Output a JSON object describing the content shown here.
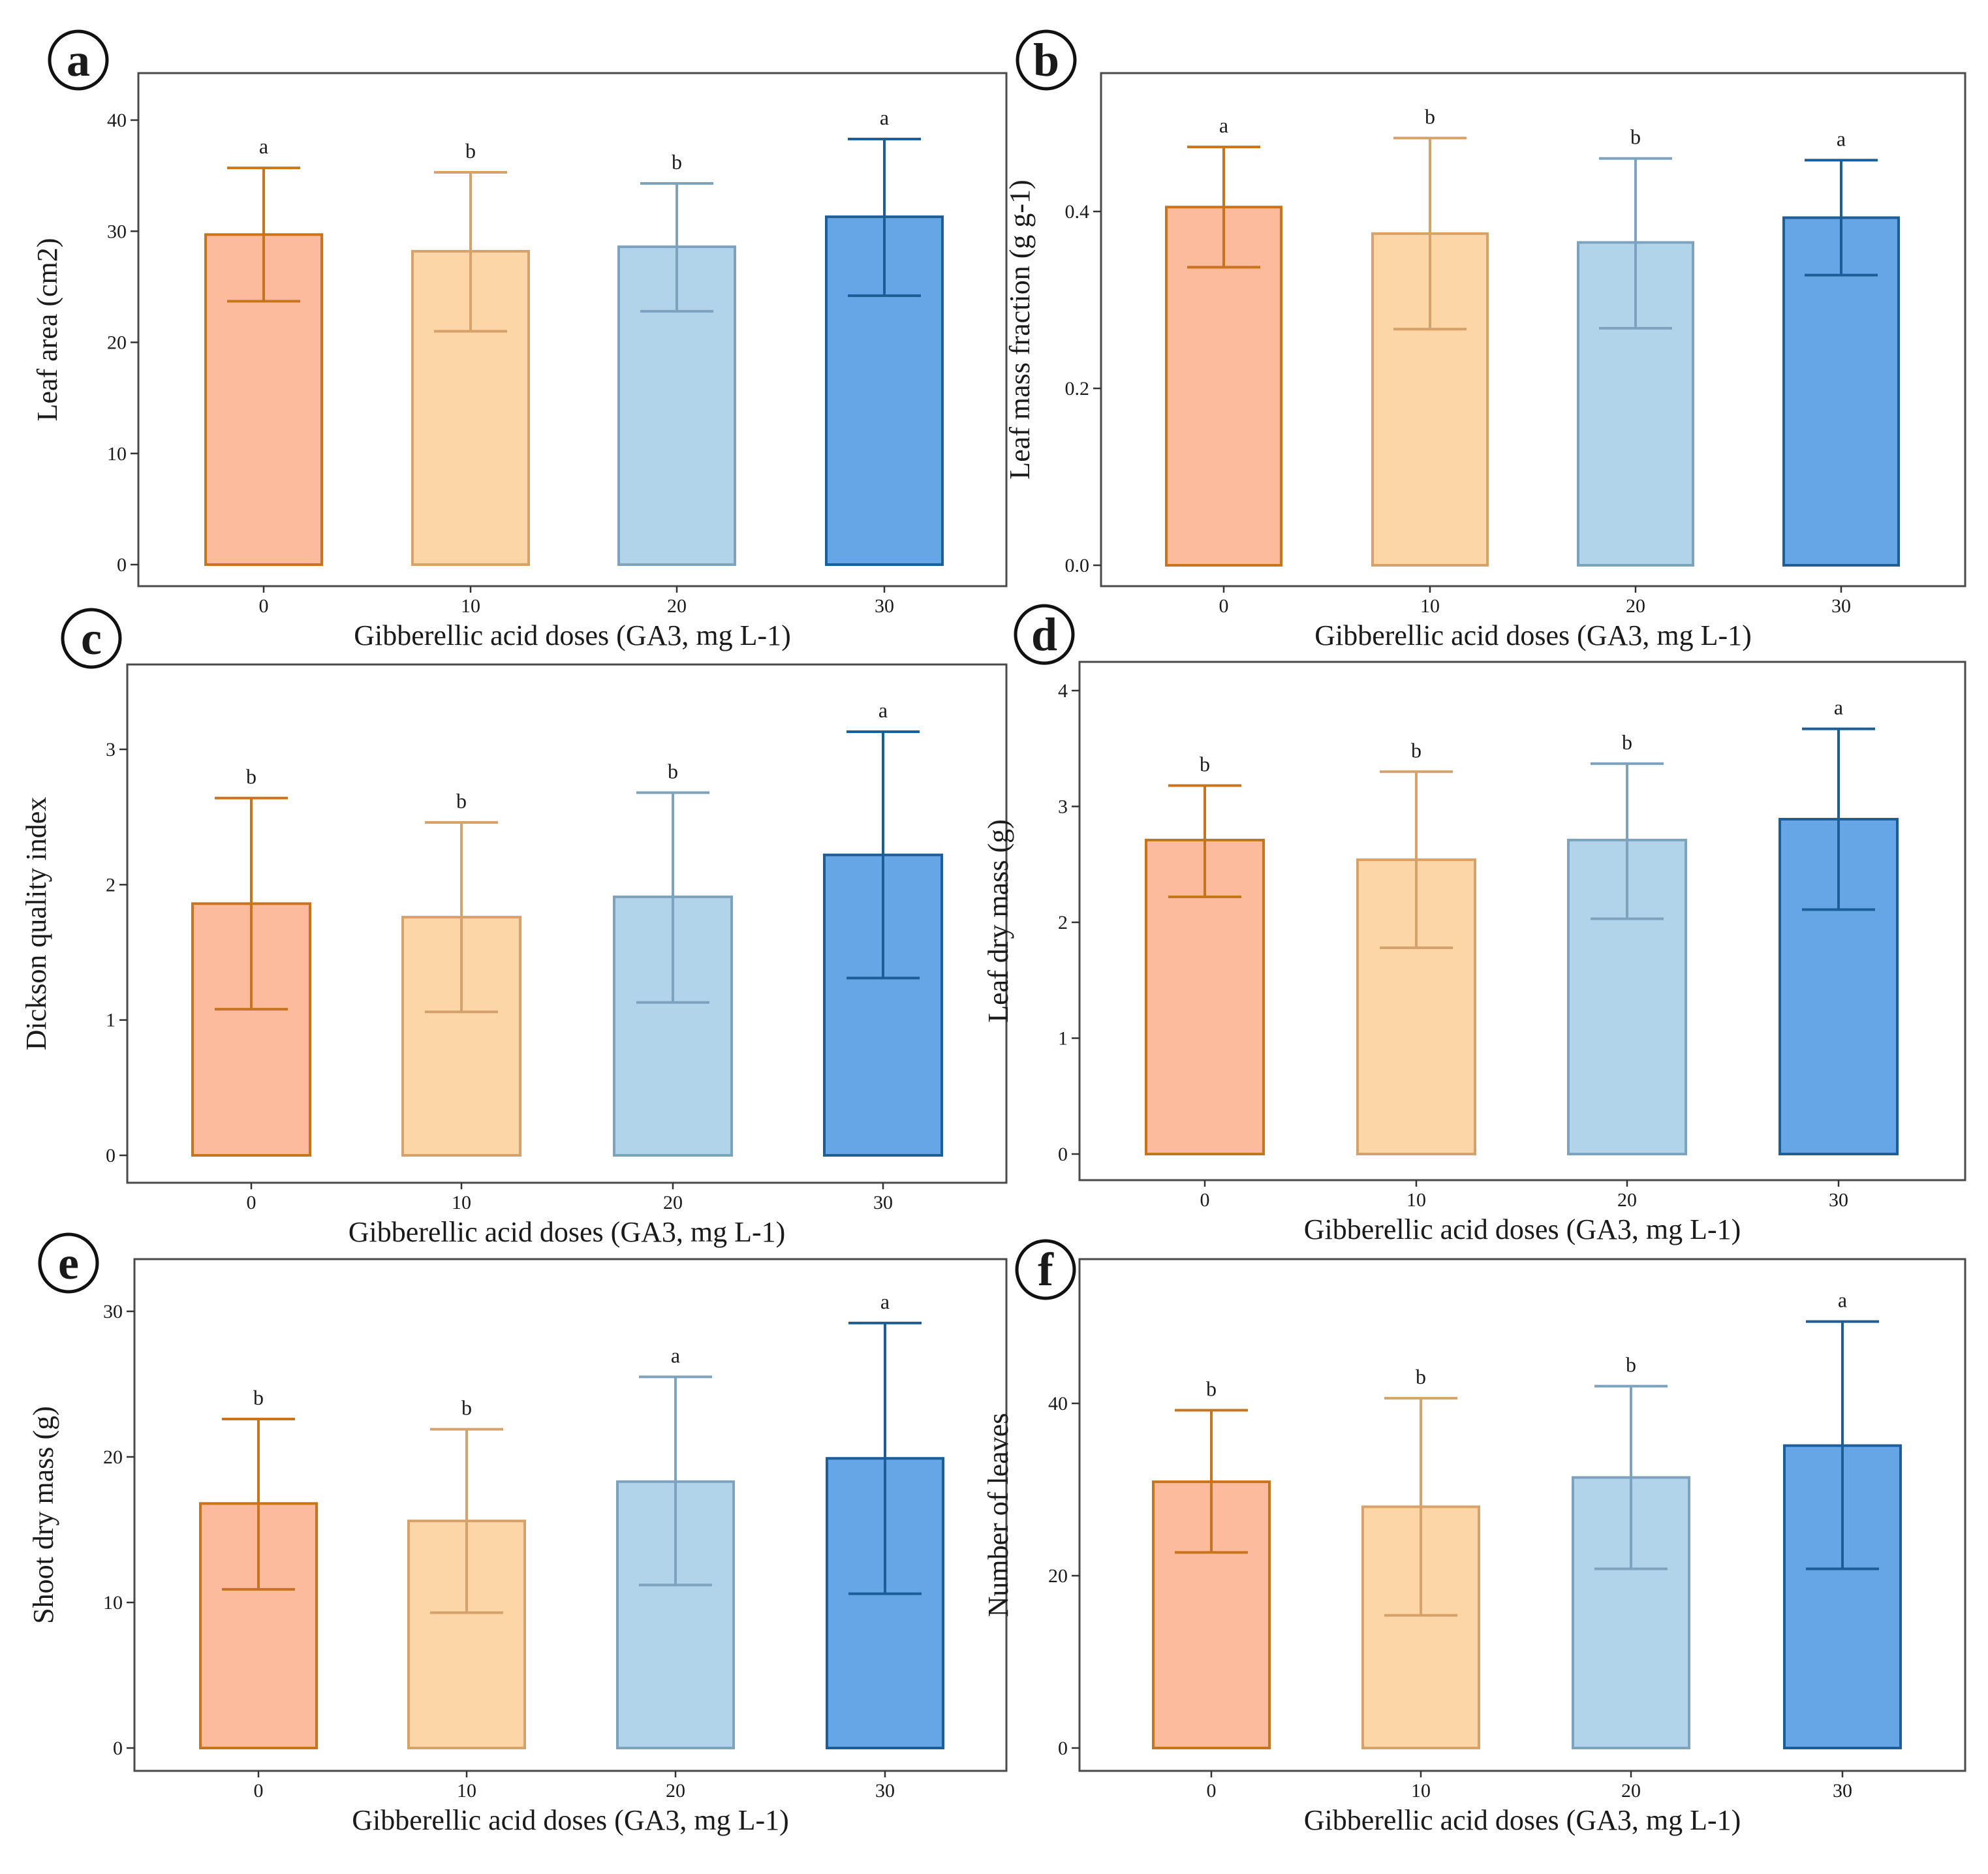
{
  "figure": {
    "colors": {
      "bar_fills": [
        "#fbbb9c",
        "#fcd6a6",
        "#b2d4ea",
        "#66a6e6"
      ],
      "bar_strokes": [
        "#c8741c",
        "#d6a26a",
        "#7ea3bf",
        "#1c5e98"
      ],
      "frame": "#4a4a4a",
      "text": "#1a1a1a"
    }
  },
  "chart_data": [
    {
      "panel": "a",
      "type": "bar",
      "categories": [
        "0",
        "10",
        "20",
        "30"
      ],
      "values": [
        29.7,
        28.2,
        28.6,
        31.3
      ],
      "error_low": [
        23.7,
        21.0,
        22.8,
        24.2
      ],
      "error_high": [
        35.7,
        35.3,
        34.3,
        38.3
      ],
      "significance": [
        "a",
        "b",
        "b",
        "a"
      ],
      "xlabel": "Gibberellic acid doses (GA3, mg L-1)",
      "ylabel": "Leaf area (cm2)",
      "ylim": [
        0,
        40
      ],
      "yticks": [
        0,
        10,
        20,
        30,
        40
      ],
      "ytick_labels": [
        "0",
        "10",
        "20",
        "30",
        "40"
      ],
      "grid": false
    },
    {
      "panel": "b",
      "type": "bar",
      "categories": [
        "0",
        "10",
        "20",
        "30"
      ],
      "values": [
        0.405,
        0.375,
        0.365,
        0.393
      ],
      "error_low": [
        0.337,
        0.267,
        0.268,
        0.328
      ],
      "error_high": [
        0.473,
        0.483,
        0.46,
        0.458
      ],
      "significance": [
        "a",
        "b",
        "b",
        "a"
      ],
      "xlabel": "Gibberellic acid doses (GA3, mg L-1)",
      "ylabel": "Leaf mass fraction (g g-1)",
      "ylim": [
        0,
        0.47
      ],
      "yticks": [
        0,
        0.2,
        0.4
      ],
      "ytick_labels": [
        "0.0",
        "0.2",
        "0.4"
      ],
      "grid": false
    },
    {
      "panel": "c",
      "type": "bar",
      "categories": [
        "0",
        "10",
        "20",
        "30"
      ],
      "values": [
        1.86,
        1.76,
        1.91,
        2.22
      ],
      "error_low": [
        1.08,
        1.06,
        1.13,
        1.31
      ],
      "error_high": [
        2.64,
        2.46,
        2.68,
        3.13
      ],
      "significance": [
        "b",
        "b",
        "b",
        "a"
      ],
      "xlabel": "Gibberellic acid doses (GA3, mg L-1)",
      "ylabel": "Dickson quality index",
      "ylim": [
        0,
        3.4
      ],
      "yticks": [
        0,
        1,
        2,
        3
      ],
      "ytick_labels": [
        "0",
        "1",
        "2",
        "3"
      ],
      "grid": false
    },
    {
      "panel": "d",
      "type": "bar",
      "categories": [
        "0",
        "10",
        "20",
        "30"
      ],
      "values": [
        2.71,
        2.54,
        2.71,
        2.89
      ],
      "error_low": [
        2.22,
        1.78,
        2.03,
        2.11
      ],
      "error_high": [
        3.18,
        3.3,
        3.37,
        3.67
      ],
      "significance": [
        "b",
        "b",
        "b",
        "a"
      ],
      "xlabel": "Gibberellic acid doses (GA3, mg L-1)",
      "ylabel": "Leaf dry mass (g)",
      "ylim": [
        0,
        4.1
      ],
      "yticks": [
        0,
        1,
        2,
        3,
        4
      ],
      "ytick_labels": [
        "0",
        "1",
        "2",
        "3",
        "4"
      ],
      "grid": false
    },
    {
      "panel": "e",
      "type": "bar",
      "categories": [
        "0",
        "10",
        "20",
        "30"
      ],
      "values": [
        16.8,
        15.6,
        18.3,
        19.9
      ],
      "error_low": [
        10.9,
        9.3,
        11.2,
        10.6
      ],
      "error_high": [
        22.6,
        21.9,
        25.5,
        29.2
      ],
      "significance": [
        "b",
        "b",
        "a",
        "a"
      ],
      "xlabel": "Gibberellic acid doses (GA3, mg L-1)",
      "ylabel": "Shoot dry mass (g)",
      "ylim": [
        0,
        30.5
      ],
      "yticks": [
        0,
        10,
        20,
        30
      ],
      "ytick_labels": [
        "0",
        "10",
        "20",
        "30"
      ],
      "grid": false
    },
    {
      "panel": "f",
      "type": "bar",
      "categories": [
        "0",
        "10",
        "20",
        "30"
      ],
      "values": [
        30.9,
        28.0,
        31.4,
        35.1
      ],
      "error_low": [
        22.7,
        15.4,
        20.8,
        20.8
      ],
      "error_high": [
        39.2,
        40.6,
        42.0,
        49.5
      ],
      "significance": [
        "b",
        "b",
        "b",
        "a"
      ],
      "xlabel": "Gibberellic acid doses (GA3, mg L-1)",
      "ylabel": "Number of leaves",
      "ylim": [
        0,
        54
      ],
      "yticks": [
        0,
        20,
        40
      ],
      "ytick_labels": [
        "0",
        "20",
        "40"
      ],
      "grid": false
    }
  ]
}
